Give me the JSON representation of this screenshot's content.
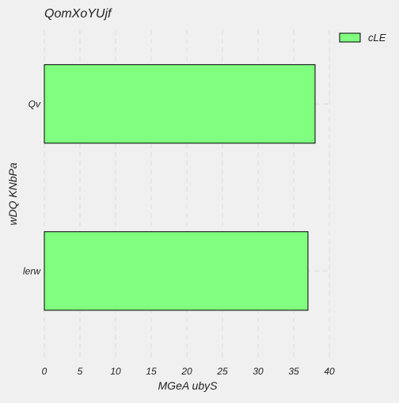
{
  "chart_data": {
    "type": "bar",
    "orientation": "horizontal",
    "title": "QomXoYUjf",
    "xlabel": "MGeA ubyS",
    "ylabel": "wDQ KNbPa",
    "categories": [
      "Qv",
      "lerw"
    ],
    "series": [
      {
        "name": "cLE",
        "values": [
          38,
          37
        ],
        "color": "#80ff80"
      }
    ],
    "xlim": [
      0,
      40
    ],
    "xticks": [
      0,
      5,
      10,
      15,
      20,
      25,
      30,
      35,
      40
    ],
    "grid": true,
    "legend_position": "top-right"
  },
  "colors": {
    "background": "#f0f0f0",
    "bar_fill": "#80ff80",
    "bar_edge": "#000000",
    "grid": "#dcdcdc"
  }
}
